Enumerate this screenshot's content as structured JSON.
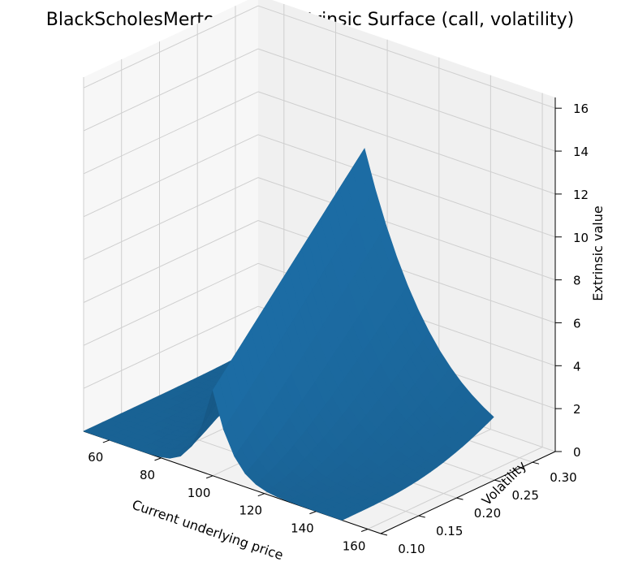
{
  "chart_data": {
    "type": "surface",
    "title": "BlackScholesMertonModel Extrinsic Surface (call, volatility)",
    "xlabel": "Current underlying price",
    "ylabel": "Volatility",
    "zlabel": "Extrinsic value",
    "xlim": [
      50,
      165
    ],
    "ylim": [
      0.1,
      0.33
    ],
    "zlim": [
      0,
      16.5
    ],
    "xticks": [
      "60",
      "80",
      "100",
      "120",
      "140",
      "160"
    ],
    "yticks": [
      "0.10",
      "0.15",
      "0.20",
      "0.25",
      "0.30"
    ],
    "zticks": [
      "0",
      "2",
      "4",
      "6",
      "8",
      "10",
      "12",
      "14",
      "16"
    ],
    "strike": 100,
    "x_range": [
      50,
      150
    ],
    "y_range": [
      0.1,
      0.3
    ],
    "surface_color": "#1f77b4",
    "corner_values": [
      {
        "x": 50,
        "y": 0.1,
        "z": 0.0
      },
      {
        "x": 150,
        "y": 0.1,
        "z": 0.0
      },
      {
        "x": 50,
        "y": 0.3,
        "z": 0.0
      },
      {
        "x": 150,
        "y": 0.3,
        "z": 6.8
      },
      {
        "x": 100,
        "y": 0.3,
        "z": 16.2
      },
      {
        "x": 100,
        "y": 0.1,
        "z": 5.6
      }
    ],
    "grid": true
  }
}
